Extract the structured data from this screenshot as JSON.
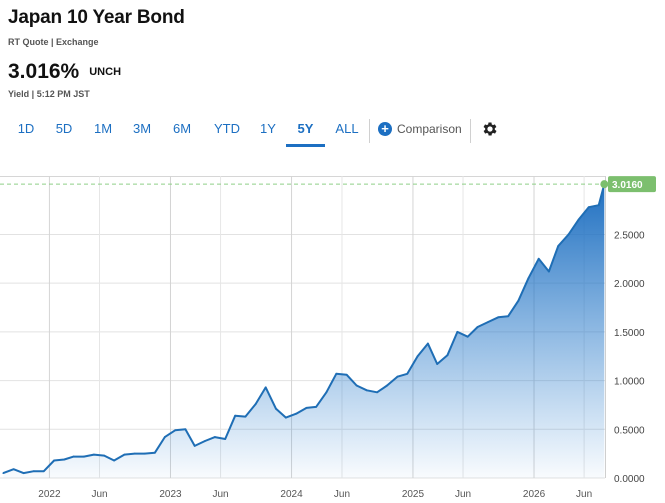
{
  "header": {
    "title": "Japan 10 Year Bond",
    "subtitle": "RT Quote | Exchange",
    "price": "3.016%",
    "change": "UNCH",
    "timestamp": "Yield | 5:12 PM JST"
  },
  "toolbar": {
    "ranges": [
      "1D",
      "5D",
      "1M",
      "3M",
      "6M",
      "YTD",
      "1Y",
      "5Y",
      "ALL"
    ],
    "active_range": "5Y",
    "comparison_label": "Comparison"
  },
  "colors": {
    "accent": "#1c6fc2",
    "line": "#1f6eb5",
    "last_badge": "#7cbf6e",
    "last_line": "#8fcf86"
  },
  "chart_data": {
    "type": "area",
    "ylim": [
      0,
      3.1
    ],
    "ytick_values": [
      0,
      0.5,
      1.0,
      1.5,
      2.0,
      2.5
    ],
    "ytick_labels": [
      "0.0000",
      "0.5000",
      "1.0000",
      "1.5000",
      "2.0000",
      "2.5000"
    ],
    "xtick_labels": [
      "2022",
      "Jun",
      "2023",
      "Jun",
      "2024",
      "Jun",
      "2025",
      "Jun",
      "2026",
      "Jun"
    ],
    "xtick_dates": [
      "2022-01-01",
      "2022-06-01",
      "2023-01-01",
      "2023-06-01",
      "2024-01-01",
      "2024-06-01",
      "2025-01-01",
      "2025-06-01",
      "2026-01-01",
      "2026-06-01"
    ],
    "last_value_label": "3.0160",
    "last_value": 3.016,
    "grid": true,
    "series": [
      {
        "x": [
          "2021-08-15",
          "2021-09-15",
          "2021-10-15",
          "2021-11-15",
          "2021-12-15",
          "2022-01-15",
          "2022-02-15",
          "2022-03-15",
          "2022-04-15",
          "2022-05-15",
          "2022-06-15",
          "2022-07-15",
          "2022-08-15",
          "2022-09-15",
          "2022-10-15",
          "2022-11-15",
          "2022-12-15",
          "2023-01-15",
          "2023-02-15",
          "2023-03-15",
          "2023-04-15",
          "2023-05-15",
          "2023-06-15",
          "2023-07-15",
          "2023-08-15",
          "2023-09-15",
          "2023-10-15",
          "2023-11-15",
          "2023-12-15",
          "2024-01-15",
          "2024-02-15",
          "2024-03-15",
          "2024-04-15",
          "2024-05-15",
          "2024-06-15",
          "2024-07-15",
          "2024-08-15",
          "2024-09-15",
          "2024-10-15",
          "2024-11-15",
          "2024-12-15",
          "2025-01-15",
          "2025-02-15",
          "2025-03-15",
          "2025-04-15",
          "2025-05-15",
          "2025-06-15",
          "2025-07-15",
          "2025-08-15",
          "2025-09-15",
          "2025-10-15",
          "2025-11-15",
          "2025-12-15",
          "2026-01-15",
          "2026-02-15",
          "2026-03-15",
          "2026-04-15",
          "2026-05-15",
          "2026-06-15",
          "2026-07-15",
          "2026-08-01"
        ],
        "values": [
          0.05,
          0.09,
          0.05,
          0.07,
          0.07,
          0.18,
          0.19,
          0.22,
          0.22,
          0.24,
          0.23,
          0.18,
          0.24,
          0.25,
          0.25,
          0.26,
          0.42,
          0.49,
          0.5,
          0.33,
          0.38,
          0.42,
          0.4,
          0.64,
          0.63,
          0.76,
          0.93,
          0.71,
          0.62,
          0.66,
          0.72,
          0.73,
          0.88,
          1.07,
          1.06,
          0.95,
          0.9,
          0.88,
          0.95,
          1.04,
          1.07,
          1.25,
          1.38,
          1.17,
          1.26,
          1.5,
          1.45,
          1.55,
          1.6,
          1.65,
          1.66,
          1.82,
          2.05,
          2.25,
          2.12,
          2.38,
          2.5,
          2.65,
          2.78,
          2.8,
          3.016
        ]
      }
    ]
  }
}
